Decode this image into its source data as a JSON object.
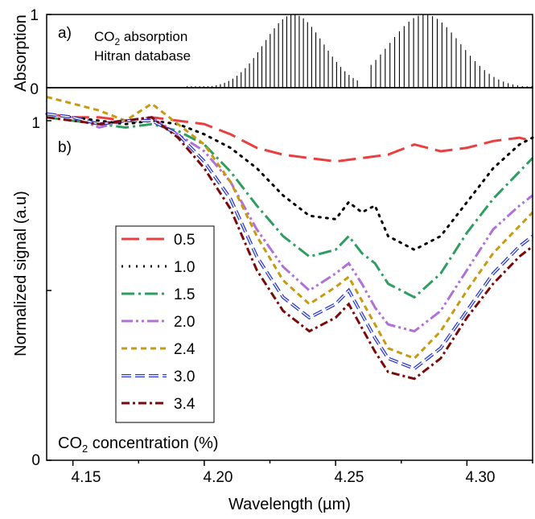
{
  "chart_data": [
    {
      "panel": "a)",
      "type": "line",
      "ylabel": "Absorption",
      "ylim": [
        0,
        1
      ],
      "yticks": [
        "0",
        "1"
      ],
      "xlim": [
        4.14,
        4.325
      ],
      "annotation_line1": "CO",
      "annotation_sub": "2",
      "annotation_line1_rest": " absorption",
      "annotation_line2": "Hitran database",
      "series": [
        {
          "color": "#000000",
          "branches": [
            {
              "start": 4.1935,
              "end": 4.2585,
              "center": 4.234,
              "spacing": 0.00158,
              "width": 0.016
            },
            {
              "start": 4.2635,
              "end": 4.325,
              "center": 4.284,
              "spacing": 0.0018,
              "width": 0.019
            }
          ]
        }
      ]
    },
    {
      "panel": "b)",
      "type": "line",
      "xlabel": "Wavelength (µm)",
      "ylabel": "Normalized signal (a.u)",
      "xlim": [
        4.14,
        4.325
      ],
      "ylim": [
        0,
        1.1
      ],
      "xticks": [
        4.15,
        4.2,
        4.25,
        4.3
      ],
      "xtick_labels": [
        "4.15",
        "4.20",
        "4.25",
        "4.30"
      ],
      "yticks": [
        0,
        1
      ],
      "ytick_labels": [
        "0",
        "1"
      ],
      "legend_position": "center-left",
      "footer_prefix": "CO",
      "footer_sub": "2",
      "footer_rest": " concentration (%)",
      "series": [
        {
          "name": "0.5",
          "color": "#e84040",
          "dash": "22 9",
          "double": false,
          "x": [
            4.14,
            4.15,
            4.16,
            4.17,
            4.18,
            4.19,
            4.2,
            4.21,
            4.22,
            4.23,
            4.24,
            4.25,
            4.26,
            4.27,
            4.28,
            4.29,
            4.3,
            4.31,
            4.32,
            4.325
          ],
          "y": [
            1.02,
            1.01,
            1.01,
            1.0,
            1.01,
            1.0,
            0.99,
            0.96,
            0.92,
            0.9,
            0.89,
            0.88,
            0.89,
            0.9,
            0.93,
            0.91,
            0.92,
            0.94,
            0.95,
            0.94
          ]
        },
        {
          "name": "1.0",
          "color": "#000000",
          "dash": "2 7",
          "double": false,
          "x": [
            4.14,
            4.15,
            4.16,
            4.17,
            4.18,
            4.19,
            4.2,
            4.21,
            4.22,
            4.23,
            4.24,
            4.25,
            4.255,
            4.26,
            4.265,
            4.27,
            4.28,
            4.29,
            4.3,
            4.31,
            4.32,
            4.325
          ],
          "y": [
            1.02,
            1.01,
            1.0,
            0.99,
            1.0,
            0.99,
            0.96,
            0.92,
            0.86,
            0.78,
            0.72,
            0.71,
            0.76,
            0.73,
            0.75,
            0.66,
            0.62,
            0.66,
            0.76,
            0.86,
            0.93,
            0.95
          ]
        },
        {
          "name": "1.5",
          "color": "#2e9e60",
          "dash": "16 5 3 5",
          "double": false,
          "x": [
            4.14,
            4.15,
            4.16,
            4.17,
            4.18,
            4.19,
            4.2,
            4.21,
            4.22,
            4.23,
            4.24,
            4.25,
            4.255,
            4.26,
            4.265,
            4.27,
            4.28,
            4.29,
            4.3,
            4.31,
            4.32,
            4.325
          ],
          "y": [
            1.01,
            1.0,
            0.99,
            0.98,
            0.99,
            0.97,
            0.93,
            0.85,
            0.75,
            0.66,
            0.6,
            0.62,
            0.66,
            0.61,
            0.58,
            0.52,
            0.48,
            0.55,
            0.67,
            0.77,
            0.85,
            0.89
          ]
        },
        {
          "name": "2.0",
          "color": "#b070d8",
          "dash": "14 4 3 4 3 4",
          "double": false,
          "x": [
            4.14,
            4.15,
            4.16,
            4.17,
            4.18,
            4.19,
            4.2,
            4.21,
            4.22,
            4.23,
            4.24,
            4.25,
            4.255,
            4.26,
            4.265,
            4.27,
            4.28,
            4.29,
            4.3,
            4.31,
            4.32,
            4.325
          ],
          "y": [
            1.02,
            1.01,
            0.98,
            1.0,
            1.01,
            0.96,
            0.91,
            0.82,
            0.68,
            0.57,
            0.5,
            0.55,
            0.58,
            0.52,
            0.45,
            0.4,
            0.38,
            0.44,
            0.56,
            0.68,
            0.75,
            0.78
          ]
        },
        {
          "name": "2.4",
          "color": "#c89a10",
          "dash": "7 5",
          "double": false,
          "x": [
            4.14,
            4.15,
            4.16,
            4.17,
            4.18,
            4.19,
            4.2,
            4.21,
            4.22,
            4.23,
            4.24,
            4.25,
            4.255,
            4.26,
            4.265,
            4.27,
            4.28,
            4.29,
            4.3,
            4.31,
            4.32,
            4.325
          ],
          "y": [
            1.07,
            1.05,
            1.03,
            1.0,
            1.05,
            0.99,
            0.93,
            0.82,
            0.66,
            0.53,
            0.46,
            0.51,
            0.54,
            0.47,
            0.4,
            0.33,
            0.3,
            0.38,
            0.5,
            0.61,
            0.69,
            0.73
          ]
        },
        {
          "name": "3.0",
          "color": "#2a3ad0",
          "dash": "12 5",
          "double": true,
          "x": [
            4.14,
            4.15,
            4.16,
            4.17,
            4.18,
            4.19,
            4.2,
            4.21,
            4.22,
            4.23,
            4.24,
            4.25,
            4.255,
            4.26,
            4.265,
            4.27,
            4.28,
            4.29,
            4.3,
            4.31,
            4.32,
            4.325
          ],
          "y": [
            1.02,
            1.01,
            0.99,
            1.0,
            1.0,
            0.96,
            0.88,
            0.77,
            0.6,
            0.48,
            0.42,
            0.46,
            0.5,
            0.43,
            0.36,
            0.3,
            0.27,
            0.33,
            0.44,
            0.55,
            0.63,
            0.66
          ]
        },
        {
          "name": "3.4",
          "color": "#7a0a0a",
          "dash": "10 4 3 4",
          "double": false,
          "x": [
            4.14,
            4.15,
            4.16,
            4.17,
            4.18,
            4.19,
            4.2,
            4.21,
            4.22,
            4.23,
            4.24,
            4.25,
            4.255,
            4.26,
            4.265,
            4.27,
            4.28,
            4.29,
            4.3,
            4.31,
            4.32,
            4.325
          ],
          "y": [
            1.01,
            1.0,
            0.99,
            1.0,
            1.01,
            0.95,
            0.86,
            0.74,
            0.56,
            0.44,
            0.38,
            0.42,
            0.46,
            0.39,
            0.32,
            0.26,
            0.24,
            0.3,
            0.42,
            0.52,
            0.6,
            0.63
          ]
        }
      ]
    }
  ]
}
